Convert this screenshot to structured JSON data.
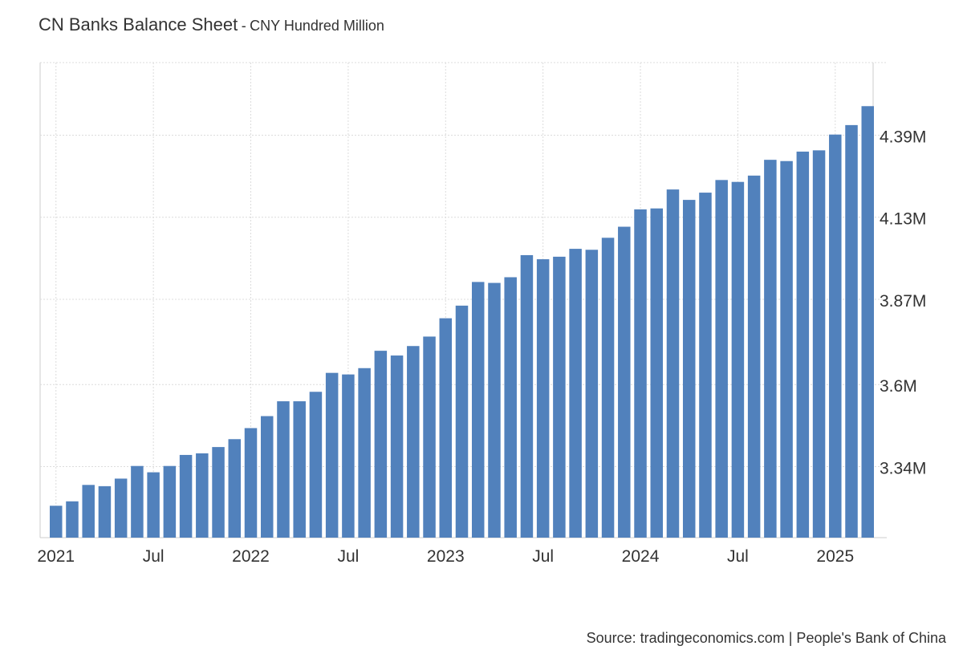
{
  "chart_data": {
    "type": "bar",
    "title": "CN Banks Balance Sheet",
    "subtitle_separator": "-",
    "subtitle": "CNY Hundred Million",
    "xlabel": "",
    "ylabel": "",
    "x_tick_labels": [
      "2021",
      "Jul",
      "2022",
      "Jul",
      "2023",
      "Jul",
      "2024",
      "Jul",
      "2025"
    ],
    "y_tick_labels": [
      "3.34M",
      "3.6M",
      "3.87M",
      "4.13M",
      "4.39M"
    ],
    "y_ticks": [
      3.34,
      3.6,
      3.87,
      4.13,
      4.39
    ],
    "y_unit": "M",
    "ylim": [
      3.115,
      4.62
    ],
    "grid": true,
    "y_axis_position": "right",
    "bar_color": "#5181bc",
    "categories": [
      "2021-01",
      "2021-02",
      "2021-03",
      "2021-04",
      "2021-05",
      "2021-06",
      "2021-07",
      "2021-08",
      "2021-09",
      "2021-10",
      "2021-11",
      "2021-12",
      "2022-01",
      "2022-02",
      "2022-03",
      "2022-04",
      "2022-05",
      "2022-06",
      "2022-07",
      "2022-08",
      "2022-09",
      "2022-10",
      "2022-11",
      "2022-12",
      "2023-01",
      "2023-02",
      "2023-03",
      "2023-04",
      "2023-05",
      "2023-06",
      "2023-07",
      "2023-08",
      "2023-09",
      "2023-10",
      "2023-11",
      "2023-12",
      "2024-01",
      "2024-02",
      "2024-03",
      "2024-04",
      "2024-05",
      "2024-06",
      "2024-07",
      "2024-08",
      "2024-09",
      "2024-10",
      "2024-11",
      "2024-12",
      "2025-01",
      "2025-02",
      "2025-03"
    ],
    "values": [
      3.216,
      3.23,
      3.282,
      3.278,
      3.302,
      3.342,
      3.322,
      3.342,
      3.377,
      3.382,
      3.402,
      3.427,
      3.462,
      3.5,
      3.547,
      3.547,
      3.577,
      3.637,
      3.632,
      3.652,
      3.707,
      3.692,
      3.722,
      3.752,
      3.81,
      3.85,
      3.925,
      3.922,
      3.94,
      4.01,
      3.997,
      4.005,
      4.03,
      4.027,
      4.065,
      4.1,
      4.155,
      4.158,
      4.218,
      4.185,
      4.208,
      4.248,
      4.242,
      4.262,
      4.312,
      4.308,
      4.338,
      4.342,
      4.392,
      4.422,
      4.482
    ]
  },
  "footer": {
    "source_text": "Source: tradingeconomics.com | People's Bank of China"
  }
}
